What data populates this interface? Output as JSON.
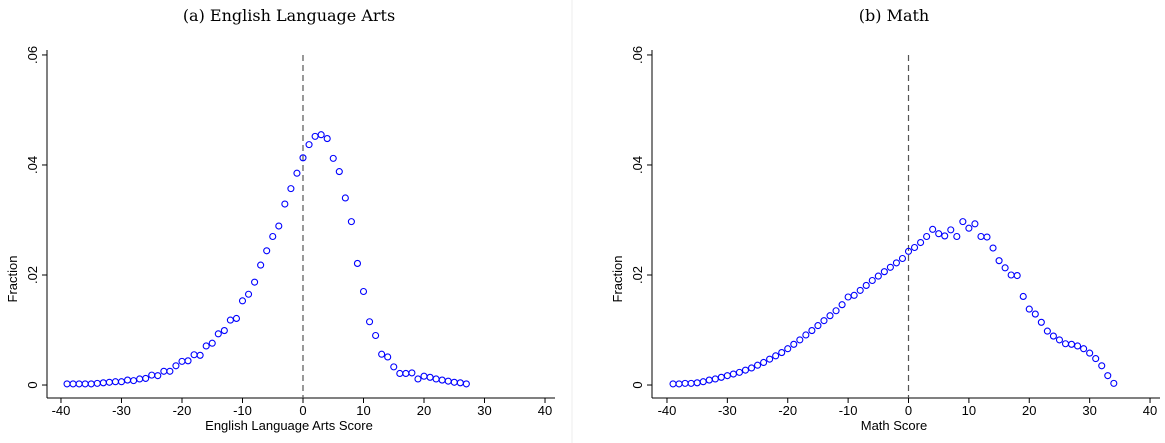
{
  "chart_data": [
    {
      "type": "scatter",
      "title": "(a) English Language Arts",
      "x_label": "English Language Arts Score",
      "y_label": "Fraction",
      "color": "#0000ff",
      "reference_line_x": 0,
      "xlim": [
        -42.31,
        41.65
      ],
      "ylim": [
        -0.00236,
        0.0609
      ],
      "xticks": [
        -40,
        -30,
        -20,
        -10,
        0,
        10,
        20,
        30,
        40
      ],
      "yticks": [
        0,
        {
          "value": 0.02,
          "label": ".02"
        },
        {
          "value": 0.04,
          "label": ".04"
        },
        {
          "value": 0.06,
          "label": ".06"
        }
      ],
      "x": [
        -39,
        -38,
        -37,
        -36,
        -35,
        -34,
        -33,
        -32,
        -31,
        -30,
        -29,
        -28,
        -27,
        -26,
        -25,
        -24,
        -23,
        -22,
        -21,
        -20,
        -19,
        -18,
        -17,
        -16,
        -15,
        -14,
        -13,
        -12,
        -11,
        -10,
        -9,
        -8,
        -7,
        -6,
        -5,
        -4,
        -3,
        -2,
        -1,
        0,
        1,
        2,
        3,
        4,
        5,
        6,
        7,
        8,
        9,
        10,
        11,
        12,
        13,
        14,
        15,
        16,
        17,
        18,
        19,
        20,
        21,
        22,
        23,
        24,
        25,
        26,
        27
      ],
      "values": [
        0.0002,
        0.0002,
        0.0002,
        0.0002,
        0.0002,
        0.0003,
        0.0004,
        0.0005,
        0.0006,
        0.0006,
        0.0009,
        0.0008,
        0.0011,
        0.0012,
        0.0018,
        0.0017,
        0.0025,
        0.0025,
        0.0035,
        0.0043,
        0.0044,
        0.0055,
        0.0054,
        0.0071,
        0.0076,
        0.0093,
        0.0099,
        0.0118,
        0.0121,
        0.0153,
        0.0165,
        0.0187,
        0.0218,
        0.0244,
        0.027,
        0.0289,
        0.0329,
        0.0357,
        0.0385,
        0.0413,
        0.0437,
        0.0452,
        0.0455,
        0.0448,
        0.0412,
        0.0388,
        0.034,
        0.0297,
        0.0221,
        0.017,
        0.0115,
        0.009,
        0.0056,
        0.0051,
        0.0033,
        0.0021,
        0.0021,
        0.0022,
        0.0011,
        0.0016,
        0.0014,
        0.0011,
        0.0009,
        0.0007,
        0.0005,
        0.0004,
        0.0002
      ]
    },
    {
      "type": "scatter",
      "title": "(b) Math",
      "x_label": "Math Score",
      "y_label": "Fraction",
      "color": "#0000ff",
      "reference_line_x": 0,
      "xlim": [
        -42.48,
        41.65
      ],
      "ylim": [
        -0.00236,
        0.0609
      ],
      "xticks": [
        -40,
        -30,
        -20,
        -10,
        0,
        10,
        20,
        30,
        40
      ],
      "yticks": [
        0,
        {
          "value": 0.02,
          "label": ".02"
        },
        {
          "value": 0.04,
          "label": ".04"
        },
        {
          "value": 0.06,
          "label": ".06"
        }
      ],
      "x": [
        -39,
        -38,
        -37,
        -36,
        -35,
        -34,
        -33,
        -32,
        -31,
        -30,
        -29,
        -28,
        -27,
        -26,
        -25,
        -24,
        -23,
        -22,
        -21,
        -20,
        -19,
        -18,
        -17,
        -16,
        -15,
        -14,
        -13,
        -12,
        -11,
        -10,
        -9,
        -8,
        -7,
        -6,
        -5,
        -4,
        -3,
        -2,
        -1,
        0,
        1,
        2,
        3,
        4,
        5,
        6,
        7,
        8,
        9,
        10,
        11,
        12,
        13,
        14,
        15,
        16,
        17,
        18,
        19,
        20,
        21,
        22,
        23,
        24,
        25,
        26,
        27,
        28,
        29,
        30,
        31,
        32,
        33,
        34
      ],
      "values": [
        0.0002,
        0.0002,
        0.0003,
        0.0003,
        0.0004,
        0.0006,
        0.0009,
        0.0011,
        0.0014,
        0.0017,
        0.002,
        0.0023,
        0.0027,
        0.0031,
        0.0036,
        0.0041,
        0.0047,
        0.0053,
        0.0059,
        0.0066,
        0.0074,
        0.0082,
        0.0091,
        0.0099,
        0.0108,
        0.0117,
        0.0126,
        0.0135,
        0.0146,
        0.016,
        0.0163,
        0.0172,
        0.0181,
        0.019,
        0.0198,
        0.0206,
        0.0214,
        0.0222,
        0.023,
        0.0243,
        0.025,
        0.0259,
        0.027,
        0.0283,
        0.0275,
        0.0271,
        0.0282,
        0.027,
        0.0297,
        0.0285,
        0.0293,
        0.027,
        0.0269,
        0.0249,
        0.0226,
        0.0213,
        0.02,
        0.0199,
        0.0161,
        0.0138,
        0.0129,
        0.0114,
        0.0098,
        0.0089,
        0.0082,
        0.0075,
        0.0074,
        0.0071,
        0.0066,
        0.0058,
        0.0048,
        0.0035,
        0.0017,
        0.0003
      ]
    }
  ]
}
